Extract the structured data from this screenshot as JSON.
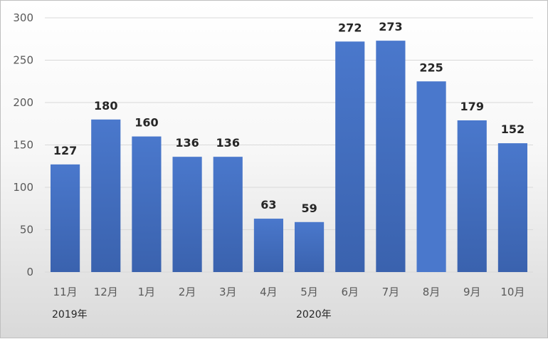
{
  "chart_data": {
    "type": "bar",
    "categories": [
      "11月",
      "12月",
      "1月",
      "2月",
      "3月",
      "4月",
      "5月",
      "6月",
      "7月",
      "8月",
      "9月",
      "10月"
    ],
    "values": [
      127,
      180,
      160,
      136,
      136,
      63,
      59,
      272,
      273,
      225,
      179,
      152
    ],
    "year_labels": [
      {
        "label": "2019年",
        "category_index": 0
      },
      {
        "label": "2020年",
        "category_index": 6
      }
    ],
    "y_ticks": [
      0,
      50,
      100,
      150,
      200,
      250,
      300
    ],
    "ylim": [
      0,
      300
    ],
    "grid": true,
    "data_labels": true,
    "colors": {
      "bar": "#4472c4",
      "highlight_bar": "#4a78cc",
      "grid": "#d9d9d9",
      "tick_text": "#595959",
      "label_text": "#262626"
    }
  }
}
